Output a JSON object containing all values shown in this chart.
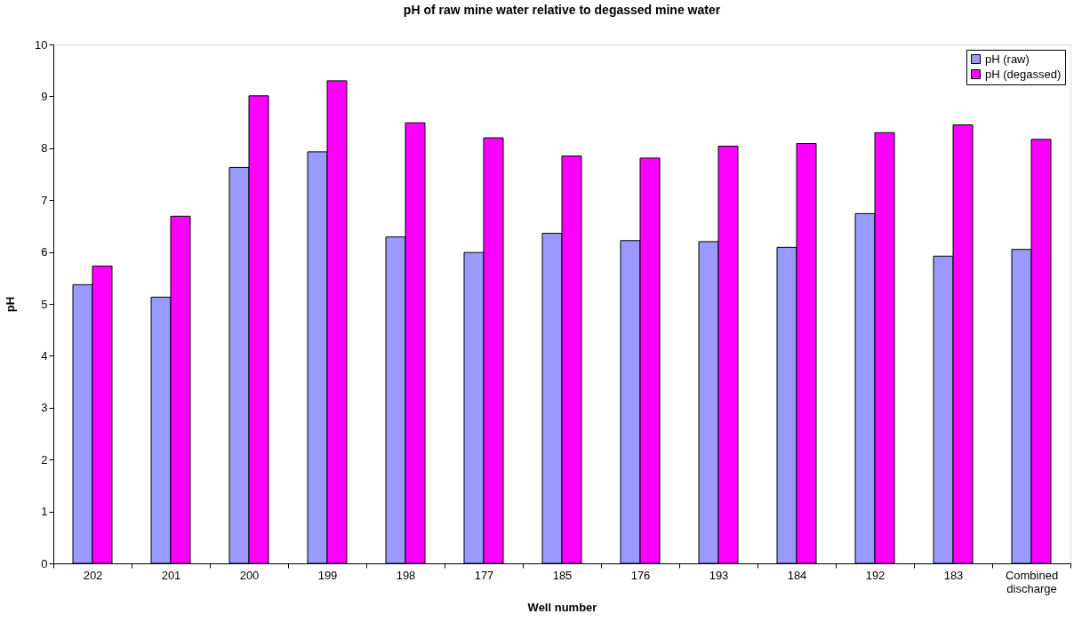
{
  "chart_data": {
    "type": "bar",
    "title": "pH of raw mine water relative to degassed mine water",
    "xlabel": "Well number",
    "ylabel": "pH",
    "categories": [
      "202",
      "201",
      "200",
      "199",
      "198",
      "177",
      "185",
      "176",
      "193",
      "184",
      "192",
      "183",
      "Combined discharge"
    ],
    "series": [
      {
        "name": "pH (raw)",
        "color": "#9999ff",
        "values": [
          5.37,
          5.13,
          7.63,
          7.93,
          6.29,
          5.99,
          6.36,
          6.22,
          6.2,
          6.09,
          6.74,
          5.92,
          6.05
        ]
      },
      {
        "name": "pH (degassed)",
        "color": "#ff00ff",
        "values": [
          5.73,
          6.69,
          9.01,
          9.3,
          8.49,
          8.2,
          7.85,
          7.81,
          8.04,
          8.09,
          8.3,
          8.45,
          8.17
        ]
      }
    ],
    "ylim": [
      0,
      10
    ],
    "yticks": [
      0,
      1,
      2,
      3,
      4,
      5,
      6,
      7,
      8,
      9,
      10
    ],
    "grid": false,
    "legend": "top right"
  }
}
